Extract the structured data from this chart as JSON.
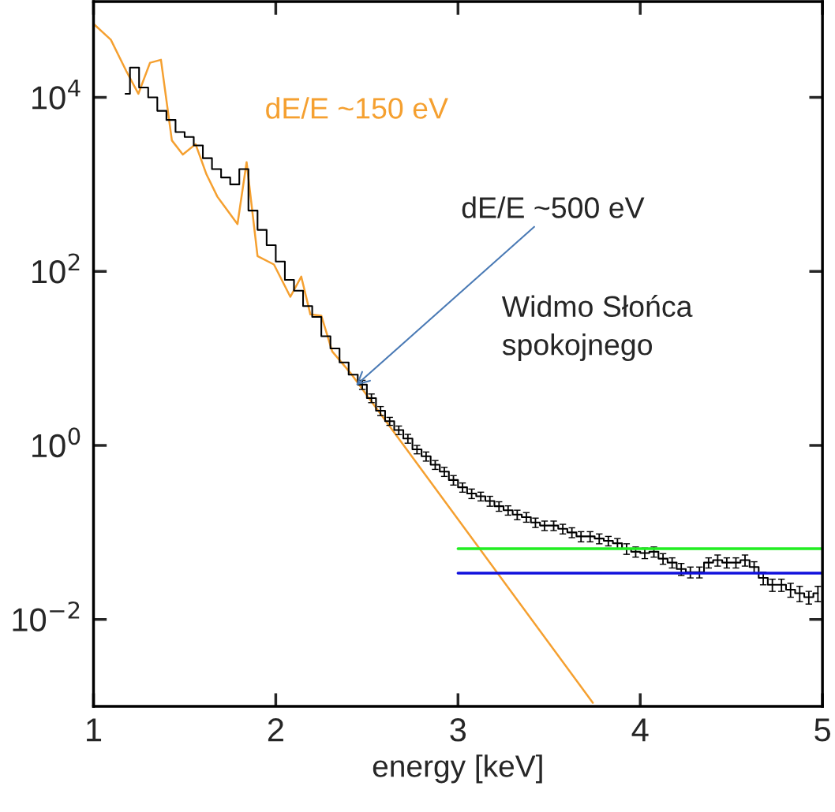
{
  "chart_data": {
    "type": "line",
    "xlabel": "energy [keV]",
    "log": "y",
    "xlim": [
      1,
      5
    ],
    "ylim": [
      0.001,
      126000
    ],
    "xticks": [
      1,
      2,
      3,
      4,
      5
    ],
    "yticks": [
      {
        "value": 0.01,
        "label": "10$^{−2}$"
      },
      {
        "value": 1,
        "label": "10$^{0}$"
      },
      {
        "value": 100,
        "label": "10$^{2}$"
      },
      {
        "value": 10000,
        "label": "10$^{4}$"
      }
    ],
    "grid": false,
    "legend": false,
    "series": [
      {
        "color": "#f5a030",
        "x": [
          1.0,
          1.095,
          1.18,
          1.246,
          1.31,
          1.37,
          1.43,
          1.49,
          1.56,
          1.62,
          1.68,
          1.79,
          1.84,
          1.9,
          1.99,
          2.08,
          2.14,
          2.19,
          2.25,
          2.31,
          2.41,
          3.74
        ],
        "values": [
          70000,
          46000,
          20000,
          11000,
          25000,
          27000,
          3200,
          2200,
          2900,
          1300,
          720,
          350,
          1800,
          150,
          120,
          51,
          87,
          32,
          31,
          12,
          6.8,
          0.0011
        ]
      },
      {
        "type": "step",
        "color": "#000000",
        "x": [
          1.175,
          1.225,
          1.275,
          1.325,
          1.375,
          1.425,
          1.475,
          1.525,
          1.575,
          1.625,
          1.675,
          1.725,
          1.775,
          1.825,
          1.875,
          1.925,
          1.975,
          2.025,
          2.075,
          2.125,
          2.175,
          2.225,
          2.275,
          2.325,
          2.375,
          2.425,
          2.475,
          2.525,
          2.575,
          2.625,
          2.675,
          2.725,
          2.775,
          2.825,
          2.875,
          2.925,
          2.975,
          3.025,
          3.075,
          3.125,
          3.175,
          3.225,
          3.275,
          3.325,
          3.375,
          3.425,
          3.475,
          3.525,
          3.575,
          3.625,
          3.675,
          3.725,
          3.775,
          3.825,
          3.875,
          3.925,
          3.975,
          4.025,
          4.075,
          4.125,
          4.175,
          4.225,
          4.275,
          4.325,
          4.375,
          4.425,
          4.475,
          4.525,
          4.575,
          4.625,
          4.675,
          4.725,
          4.775,
          4.825,
          4.875,
          4.925,
          4.975
        ],
        "values": [
          11000,
          22000,
          13000,
          10000,
          7000,
          5500,
          4000,
          3500,
          2800,
          2000,
          1500,
          1200,
          1000,
          1500,
          500,
          300,
          200,
          130,
          80,
          60,
          40,
          30,
          18,
          13,
          9,
          6.5,
          5,
          3.5,
          2.5,
          1.9,
          1.5,
          1.2,
          0.9,
          0.75,
          0.6,
          0.5,
          0.4,
          0.33,
          0.28,
          0.26,
          0.23,
          0.2,
          0.18,
          0.16,
          0.15,
          0.13,
          0.12,
          0.12,
          0.11,
          0.1,
          0.09,
          0.09,
          0.085,
          0.08,
          0.075,
          0.065,
          0.06,
          0.058,
          0.06,
          0.05,
          0.045,
          0.038,
          0.035,
          0.035,
          0.045,
          0.048,
          0.045,
          0.045,
          0.048,
          0.04,
          0.03,
          0.025,
          0.025,
          0.022,
          0.02,
          0.018,
          0.02
        ],
        "errors": [
          null,
          null,
          null,
          null,
          null,
          null,
          null,
          null,
          null,
          null,
          null,
          null,
          null,
          null,
          null,
          null,
          null,
          null,
          null,
          null,
          null,
          null,
          null,
          null,
          null,
          null,
          0.6,
          0.4,
          0.3,
          0.2,
          0.17,
          0.14,
          0.1,
          0.09,
          0.07,
          0.06,
          0.05,
          0.04,
          0.035,
          0.03,
          0.03,
          0.025,
          0.022,
          0.02,
          0.019,
          0.016,
          0.015,
          0.015,
          0.014,
          0.013,
          0.012,
          0.012,
          0.011,
          0.01,
          0.01,
          0.009,
          0.008,
          0.008,
          0.008,
          0.007,
          0.006,
          0.006,
          0.005,
          0.005,
          0.006,
          0.007,
          0.006,
          0.006,
          0.007,
          0.006,
          0.005,
          0.004,
          0.004,
          0.004,
          0.004,
          0.003,
          0.004
        ]
      },
      {
        "color": "#22ee22",
        "x": [
          3,
          5
        ],
        "values": [
          0.065,
          0.065
        ]
      },
      {
        "color": "#1111dd",
        "x": [
          3,
          5
        ],
        "values": [
          0.034,
          0.034
        ]
      }
    ],
    "annotations": [
      "dE/E ~150 eV",
      {
        "text": "dE/E ~500 eV",
        "x": 2.44,
        "y": 4.9
      },
      "Widmo Słońca spokojnego"
    ]
  }
}
